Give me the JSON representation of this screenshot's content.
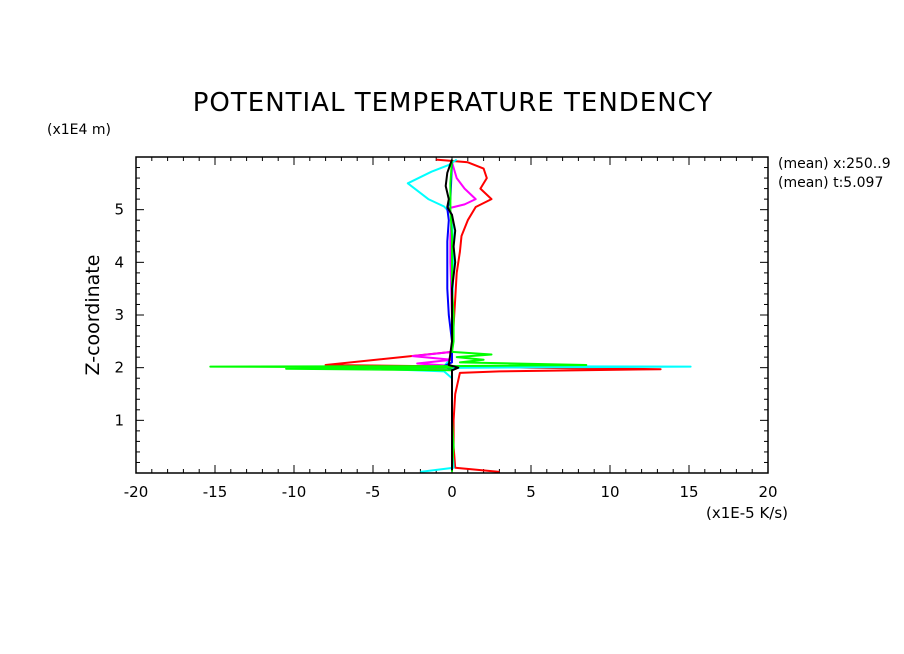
{
  "chart_data": {
    "type": "line",
    "title": "POTENTIAL TEMPERATURE TENDENCY",
    "xlabel": "(x1E-5 K/s)",
    "ylabel": "Z-coordinate",
    "y_units": "(x1E4 m)",
    "annotations": [
      "(mean) x:250..9",
      "(mean) t:5.097"
    ],
    "xlim": [
      -20,
      20
    ],
    "ylim": [
      0,
      6
    ],
    "x_ticks": [
      "-20",
      "-15",
      "-10",
      "-5",
      "0",
      "5",
      "10",
      "15",
      "20"
    ],
    "y_ticks": [
      "1",
      "2",
      "3",
      "4",
      "5"
    ],
    "grid": false,
    "series": [
      {
        "color": "#ff0000",
        "points": [
          [
            -1,
            5.95
          ],
          [
            1,
            5.9
          ],
          [
            2,
            5.78
          ],
          [
            2.2,
            5.6
          ],
          [
            1.8,
            5.4
          ],
          [
            2.5,
            5.2
          ],
          [
            1.5,
            5.05
          ],
          [
            1,
            4.8
          ],
          [
            0.6,
            4.5
          ],
          [
            0.5,
            4.2
          ],
          [
            0.3,
            3.8
          ],
          [
            0.2,
            3.3
          ],
          [
            0.1,
            2.8
          ],
          [
            0,
            2.3
          ],
          [
            -8,
            2.05
          ],
          [
            1,
            2.02
          ],
          [
            5,
            2.0
          ],
          [
            13.2,
            1.97
          ],
          [
            3,
            1.93
          ],
          [
            0.5,
            1.9
          ],
          [
            0.2,
            1.5
          ],
          [
            0.1,
            1.0
          ],
          [
            0.1,
            0.5
          ],
          [
            0.2,
            0.1
          ],
          [
            3,
            0.02
          ]
        ]
      },
      {
        "color": "#00ffff",
        "points": [
          [
            0.3,
            5.95
          ],
          [
            -0.2,
            5.85
          ],
          [
            -1.3,
            5.72
          ],
          [
            -2.8,
            5.5
          ],
          [
            -1.5,
            5.2
          ],
          [
            -0.5,
            5.06
          ],
          [
            0,
            4.9
          ],
          [
            0.1,
            4.0
          ],
          [
            0,
            3.0
          ],
          [
            0,
            2.2
          ],
          [
            -0.5,
            2.03
          ],
          [
            15.1,
            2.02
          ],
          [
            1,
            2.0
          ],
          [
            -5,
            1.98
          ],
          [
            -0.5,
            1.93
          ],
          [
            0,
            1.8
          ],
          [
            0,
            1.2
          ],
          [
            0,
            0.6
          ],
          [
            0.1,
            0.1
          ],
          [
            -2,
            0.02
          ]
        ]
      },
      {
        "color": "#ff00ff",
        "points": [
          [
            0,
            5.9
          ],
          [
            0.3,
            5.6
          ],
          [
            0.8,
            5.4
          ],
          [
            1.5,
            5.2
          ],
          [
            0.8,
            5.1
          ],
          [
            -0.3,
            5.02
          ],
          [
            0,
            4.9
          ],
          [
            -0.1,
            4.5
          ],
          [
            -0.1,
            4.0
          ],
          [
            0,
            3.0
          ],
          [
            0,
            2.3
          ],
          [
            -2.5,
            2.22
          ],
          [
            0,
            2.15
          ],
          [
            -2.2,
            2.08
          ],
          [
            0.2,
            2.03
          ],
          [
            -1.5,
            1.98
          ],
          [
            0,
            1.95
          ],
          [
            0,
            1.0
          ],
          [
            0,
            0.1
          ]
        ]
      },
      {
        "color": "#0000ff",
        "points": [
          [
            0,
            5.9
          ],
          [
            -0.1,
            5.2
          ],
          [
            -0.3,
            5.02
          ],
          [
            -0.2,
            4.8
          ],
          [
            -0.3,
            4.4
          ],
          [
            -0.3,
            4.0
          ],
          [
            -0.3,
            3.5
          ],
          [
            -0.2,
            3.0
          ],
          [
            0,
            2.5
          ],
          [
            0,
            2.1
          ],
          [
            -0.5,
            2.03
          ],
          [
            0,
            1.95
          ],
          [
            0,
            1.5
          ],
          [
            0,
            0.5
          ],
          [
            0,
            0.1
          ]
        ]
      },
      {
        "color": "#00ff00",
        "points": [
          [
            0,
            5.95
          ],
          [
            -0.1,
            5.5
          ],
          [
            -0.1,
            5.0
          ],
          [
            0,
            4.5
          ],
          [
            0,
            4.0
          ],
          [
            0,
            3.5
          ],
          [
            0.1,
            3.0
          ],
          [
            0.1,
            2.5
          ],
          [
            0,
            2.3
          ],
          [
            2.5,
            2.25
          ],
          [
            0.3,
            2.2
          ],
          [
            2,
            2.15
          ],
          [
            0.5,
            2.1
          ],
          [
            8.5,
            2.05
          ],
          [
            0,
            2.03
          ],
          [
            -15.3,
            2.02
          ],
          [
            0,
            2.0
          ],
          [
            -10.5,
            1.98
          ],
          [
            0,
            1.95
          ],
          [
            0,
            1.5
          ],
          [
            0,
            1.0
          ],
          [
            0.1,
            0.5
          ],
          [
            0,
            0.1
          ],
          [
            0,
            0.02
          ]
        ]
      },
      {
        "color": "#000000",
        "points": [
          [
            0,
            5.95
          ],
          [
            -0.3,
            5.7
          ],
          [
            -0.4,
            5.45
          ],
          [
            -0.2,
            5.2
          ],
          [
            -0.3,
            5.05
          ],
          [
            0,
            4.9
          ],
          [
            0.2,
            4.6
          ],
          [
            0.1,
            4.3
          ],
          [
            0.2,
            4.0
          ],
          [
            0,
            3.5
          ],
          [
            0,
            3.0
          ],
          [
            0,
            2.5
          ],
          [
            -0.2,
            2.05
          ],
          [
            0.4,
            2.0
          ],
          [
            0,
            1.95
          ],
          [
            0,
            1.5
          ],
          [
            0,
            1.0
          ],
          [
            0,
            0.5
          ],
          [
            0,
            0.05
          ]
        ]
      }
    ]
  }
}
